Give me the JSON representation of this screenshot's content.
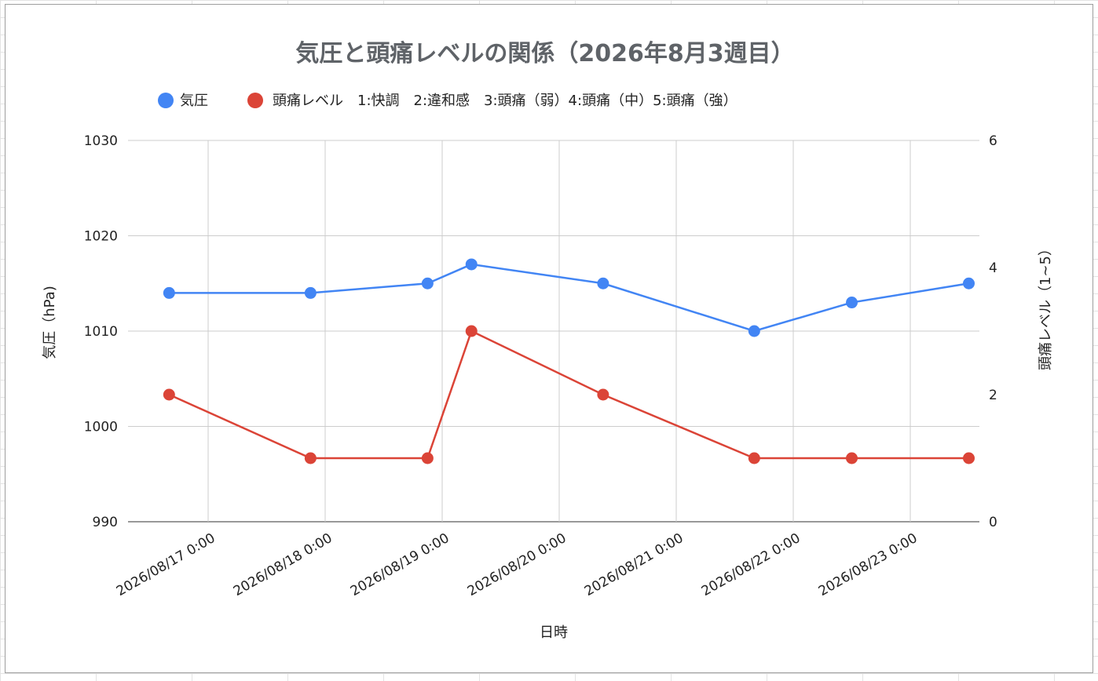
{
  "chart_data": {
    "type": "line",
    "title": "気圧と頭痛レベルの関係（2026年8月3週目）",
    "xlabel": "日時",
    "ylabel_left": "気圧（hPa)",
    "ylabel_right": "頭痛レベル（1~5）",
    "legend_position": "top-left",
    "grid": true,
    "ylim_left": [
      990,
      1030
    ],
    "ylim_right": [
      0,
      6
    ],
    "yticks_left": [
      "990",
      "1000",
      "1010",
      "1020",
      "1030"
    ],
    "yticks_right": [
      "0",
      "2",
      "4",
      "6"
    ],
    "x_ticks": [
      "2026/08/17 0:00",
      "2026/08/18 0:00",
      "2026/08/19 0:00",
      "2026/08/20 0:00",
      "2026/08/21 0:00",
      "2026/08/22 0:00",
      "2026/08/23 0:00"
    ],
    "x": [
      "2026/08/16 16:00",
      "2026/08/17 21:00",
      "2026/08/18 21:00",
      "2026/08/19 06:00",
      "2026/08/20 09:00",
      "2026/08/21 16:00",
      "2026/08/22 12:00",
      "2026/08/23 12:00"
    ],
    "series": [
      {
        "name": "気圧",
        "axis": "left",
        "color": "#4285f4",
        "values": [
          1014,
          1014,
          1015,
          1017,
          1015,
          1010,
          1013,
          1015
        ]
      },
      {
        "name": "頭痛レベル　1:快調　2:違和感　3:頭痛（弱）4:頭痛（中）5:頭痛（強）",
        "axis": "right",
        "color": "#db4437",
        "values": [
          2,
          1,
          1,
          3,
          2,
          1,
          1,
          1
        ]
      }
    ]
  }
}
